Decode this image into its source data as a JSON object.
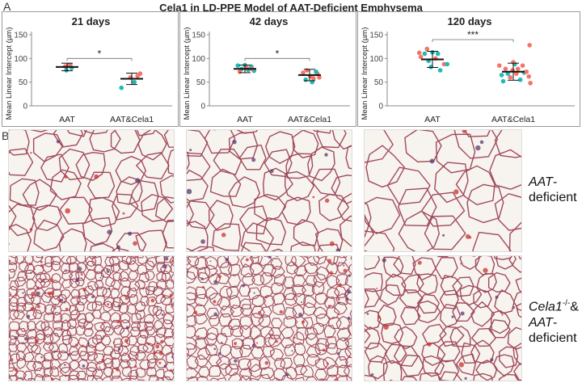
{
  "figure": {
    "panel_a_letter": "A",
    "panel_b_letter": "B",
    "title": "Cela1 in LD-PPE Model of AAT-Deficient Emphysema"
  },
  "colors": {
    "teal": "#20b9b4",
    "coral": "#f57367",
    "bracket": "#6e6e6e"
  },
  "chart_data": [
    {
      "type": "scatter",
      "title": "21 days",
      "ylabel": "Mean Linear Intercept (µm)",
      "ylim": [
        0,
        150
      ],
      "yticks": [
        0,
        50,
        100,
        150
      ],
      "categories": [
        "AAT",
        "AAT&Cela1"
      ],
      "groups": [
        {
          "name": "AAT",
          "mean": 82,
          "sd": 8,
          "points": [
            {
              "dx": -0.06,
              "y": 83,
              "c": "coral"
            },
            {
              "dx": 0.04,
              "y": 85,
              "c": "coral"
            },
            {
              "dx": 0.1,
              "y": 86,
              "c": "coral"
            },
            {
              "dx": -0.02,
              "y": 75,
              "c": "teal"
            },
            {
              "dx": 0.14,
              "y": 80,
              "c": "teal"
            }
          ]
        },
        {
          "name": "AAT&Cela1",
          "mean": 57,
          "sd": 12,
          "points": [
            {
              "dx": -0.32,
              "y": 38,
              "c": "teal"
            },
            {
              "dx": 0.08,
              "y": 50,
              "c": "teal"
            },
            {
              "dx": 0.18,
              "y": 63,
              "c": "coral"
            },
            {
              "dx": 0.26,
              "y": 68,
              "c": "coral"
            },
            {
              "dx": -0.04,
              "y": 60,
              "c": "coral"
            }
          ]
        }
      ],
      "significance": "*"
    },
    {
      "type": "scatter",
      "title": "42 days",
      "ylabel": "Mean Linear Intercept (µm)",
      "ylim": [
        0,
        150
      ],
      "yticks": [
        0,
        50,
        100,
        150
      ],
      "categories": [
        "AAT",
        "AAT&Cela1"
      ],
      "groups": [
        {
          "name": "AAT",
          "mean": 78,
          "sd": 8,
          "points": [
            {
              "dx": -0.22,
              "y": 85,
              "c": "teal"
            },
            {
              "dx": -0.1,
              "y": 78,
              "c": "teal"
            },
            {
              "dx": 0.0,
              "y": 86,
              "c": "teal"
            },
            {
              "dx": 0.1,
              "y": 76,
              "c": "teal"
            },
            {
              "dx": 0.2,
              "y": 83,
              "c": "teal"
            },
            {
              "dx": 0.28,
              "y": 74,
              "c": "teal"
            },
            {
              "dx": -0.16,
              "y": 72,
              "c": "coral"
            },
            {
              "dx": 0.06,
              "y": 80,
              "c": "coral"
            },
            {
              "dx": 0.22,
              "y": 78,
              "c": "coral"
            }
          ]
        },
        {
          "name": "AAT&Cela1",
          "mean": 65,
          "sd": 12,
          "points": [
            {
              "dx": -0.2,
              "y": 70,
              "c": "coral"
            },
            {
              "dx": -0.08,
              "y": 75,
              "c": "coral"
            },
            {
              "dx": 0.02,
              "y": 62,
              "c": "coral"
            },
            {
              "dx": 0.12,
              "y": 58,
              "c": "coral"
            },
            {
              "dx": 0.24,
              "y": 68,
              "c": "coral"
            },
            {
              "dx": 0.3,
              "y": 60,
              "c": "coral"
            },
            {
              "dx": -0.12,
              "y": 55,
              "c": "teal"
            },
            {
              "dx": 0.08,
              "y": 50,
              "c": "teal"
            },
            {
              "dx": 0.2,
              "y": 72,
              "c": "teal"
            }
          ]
        }
      ],
      "significance": "*"
    },
    {
      "type": "scatter",
      "title": "120 days",
      "ylabel": "Mean Linear Intercept (µm)",
      "ylim": [
        0,
        150
      ],
      "yticks": [
        0,
        50,
        100,
        150
      ],
      "categories": [
        "AAT",
        "AAT&Cela1"
      ],
      "groups": [
        {
          "name": "AAT",
          "mean": 98,
          "sd": 17,
          "points": [
            {
              "dx": -0.34,
              "y": 112,
              "c": "coral"
            },
            {
              "dx": -0.3,
              "y": 103,
              "c": "coral"
            },
            {
              "dx": -0.2,
              "y": 110,
              "c": "teal"
            },
            {
              "dx": -0.1,
              "y": 95,
              "c": "teal"
            },
            {
              "dx": 0.0,
              "y": 113,
              "c": "teal"
            },
            {
              "dx": 0.08,
              "y": 100,
              "c": "coral"
            },
            {
              "dx": 0.14,
              "y": 110,
              "c": "teal"
            },
            {
              "dx": -0.04,
              "y": 82,
              "c": "teal"
            },
            {
              "dx": 0.2,
              "y": 75,
              "c": "teal"
            },
            {
              "dx": 0.3,
              "y": 88,
              "c": "coral"
            },
            {
              "dx": 0.38,
              "y": 88,
              "c": "teal"
            },
            {
              "dx": -0.14,
              "y": 120,
              "c": "coral"
            }
          ]
        },
        {
          "name": "AAT&Cela1",
          "mean": 72,
          "sd": 18,
          "points": [
            {
              "dx": -0.36,
              "y": 85,
              "c": "coral"
            },
            {
              "dx": -0.3,
              "y": 65,
              "c": "teal"
            },
            {
              "dx": -0.26,
              "y": 52,
              "c": "teal"
            },
            {
              "dx": -0.2,
              "y": 78,
              "c": "coral"
            },
            {
              "dx": -0.14,
              "y": 68,
              "c": "teal"
            },
            {
              "dx": -0.08,
              "y": 60,
              "c": "coral"
            },
            {
              "dx": -0.02,
              "y": 75,
              "c": "coral"
            },
            {
              "dx": 0.04,
              "y": 88,
              "c": "teal"
            },
            {
              "dx": 0.08,
              "y": 68,
              "c": "coral"
            },
            {
              "dx": 0.12,
              "y": 78,
              "c": "coral"
            },
            {
              "dx": 0.18,
              "y": 55,
              "c": "teal"
            },
            {
              "dx": 0.24,
              "y": 85,
              "c": "coral"
            },
            {
              "dx": 0.28,
              "y": 70,
              "c": "teal"
            },
            {
              "dx": 0.34,
              "y": 72,
              "c": "coral"
            },
            {
              "dx": 0.4,
              "y": 62,
              "c": "coral"
            },
            {
              "dx": 0.44,
              "y": 48,
              "c": "coral"
            },
            {
              "dx": 0.42,
              "y": 128,
              "c": "coral"
            },
            {
              "dx": 0.0,
              "y": 92,
              "c": "coral"
            }
          ]
        }
      ],
      "significance": "***"
    }
  ],
  "panel_b": {
    "row_labels": {
      "top": {
        "line1": "AAT",
        "suffix1": "-",
        "line2": "deficient"
      },
      "bottom": {
        "line1_italic": "Cela1",
        "line1_sup": "-/-",
        "line1_tail": "&",
        "line2_italic": "AAT",
        "line2_tail": "-",
        "line3": "deficient"
      }
    },
    "micrographs": [
      {
        "row": "top",
        "col": 1,
        "alveoli": "large"
      },
      {
        "row": "top",
        "col": 2,
        "alveoli": "large"
      },
      {
        "row": "top",
        "col": 3,
        "alveoli": "very large"
      },
      {
        "row": "bottom",
        "col": 1,
        "alveoli": "small dense"
      },
      {
        "row": "bottom",
        "col": 2,
        "alveoli": "small regular"
      },
      {
        "row": "bottom",
        "col": 3,
        "alveoli": "medium"
      }
    ]
  }
}
